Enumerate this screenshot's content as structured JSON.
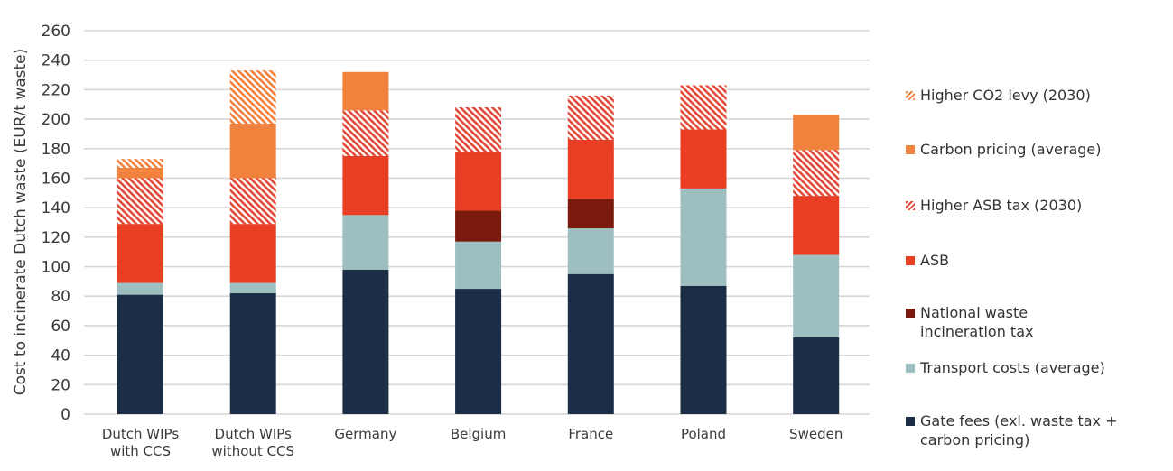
{
  "chart_data": {
    "type": "bar",
    "stacked": true,
    "title": "",
    "xlabel": "",
    "ylabel": "Cost to incinerate Dutch waste (EUR/t waste)",
    "ylim": [
      0,
      260
    ],
    "yticks": [
      0,
      20,
      40,
      60,
      80,
      100,
      120,
      140,
      160,
      180,
      200,
      220,
      240,
      260
    ],
    "grid": true,
    "legend_position": "right",
    "categories": [
      "Dutch WIPs\nwith CCS",
      "Dutch WIPs\nwithout CCS",
      "Germany",
      "Belgium",
      "France",
      "Poland",
      "Sweden"
    ],
    "series": [
      {
        "name": "Gate fees (exl. waste tax + carbon pricing)",
        "color": "#1B2E45",
        "pattern": "solid",
        "values": [
          81,
          82,
          98,
          85,
          95,
          87,
          52
        ]
      },
      {
        "name": "Transport costs (average)",
        "color": "#9DBFBF",
        "pattern": "solid",
        "values": [
          8,
          7,
          37,
          32,
          31,
          66,
          56
        ]
      },
      {
        "name": "National waste incineration tax",
        "color": "#7A1A0C",
        "pattern": "solid",
        "values": [
          0,
          0,
          0,
          21,
          20,
          0,
          0
        ]
      },
      {
        "name": "ASB",
        "color": "#E83E24",
        "pattern": "solid",
        "values": [
          40,
          40,
          40,
          40,
          40,
          40,
          40
        ]
      },
      {
        "name": "Higher ASB tax (2030)",
        "color": "#E04A36",
        "pattern": "hatched",
        "values": [
          31,
          31,
          31,
          30,
          30,
          30,
          31
        ]
      },
      {
        "name": "Carbon pricing (average)",
        "color": "#F0823E",
        "pattern": "solid",
        "values": [
          7,
          37,
          26,
          0,
          0,
          0,
          24
        ]
      },
      {
        "name": "Higher CO2 levy (2030)",
        "color": "#F0823E",
        "pattern": "hatched",
        "values": [
          6,
          36,
          0,
          0,
          0,
          0,
          0
        ]
      }
    ],
    "totals": [
      173,
      233,
      232,
      208,
      216,
      223,
      203
    ]
  },
  "legend": {
    "items": [
      {
        "label": "Higher CO2 levy (2030)",
        "color": "#F0823E",
        "pattern": "hatched"
      },
      {
        "label": "Carbon pricing (average)",
        "color": "#F0823E",
        "pattern": "solid"
      },
      {
        "label": "Higher ASB tax (2030)",
        "color": "#E04A36",
        "pattern": "hatched"
      },
      {
        "label": "ASB",
        "color": "#E83E24",
        "pattern": "solid"
      },
      {
        "label": "National waste\nincineration tax",
        "color": "#7A1A0C",
        "pattern": "solid"
      },
      {
        "label": "Transport costs (average)",
        "color": "#9DBFBF",
        "pattern": "solid"
      },
      {
        "label": "Gate fees (exl. waste tax +\ncarbon pricing)",
        "color": "#1B2E45",
        "pattern": "solid"
      }
    ]
  }
}
